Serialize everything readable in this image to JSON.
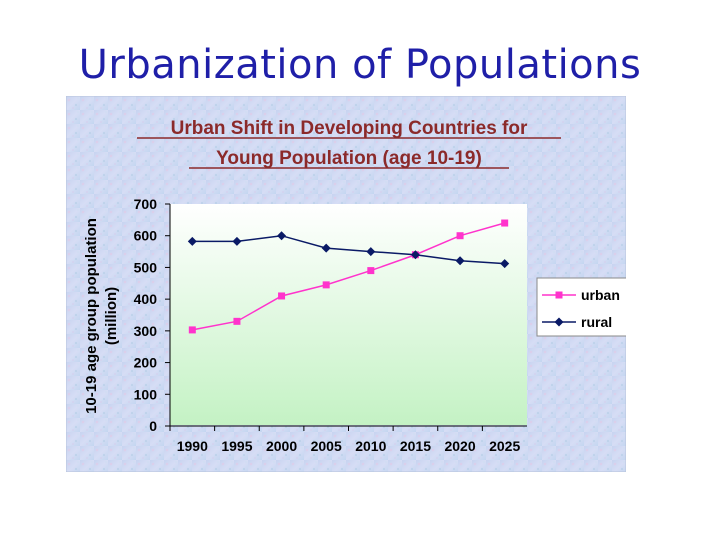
{
  "slide": {
    "title": "Urbanization of Populations"
  },
  "colors": {
    "title": "#1f1fa8",
    "chart_title": "#8b2a2a",
    "urban": "#ff33cc",
    "rural": "#0a1a66",
    "panel_bg": "#c9d8f2",
    "plot_bg_top": "#ffffff",
    "plot_bg_bottom": "#c4f2c4"
  },
  "chart_data": {
    "type": "line",
    "title_lines": [
      "Urban Shift in Developing Countries for",
      "Young Population (age 10-19)"
    ],
    "ylabel_lines": [
      "10-19 age group population",
      "(million)"
    ],
    "xlabel": "",
    "x": [
      "1990",
      "1995",
      "2000",
      "2005",
      "2010",
      "2015",
      "2020",
      "2025"
    ],
    "ylim": [
      0,
      700
    ],
    "yticks": [
      0,
      100,
      200,
      300,
      400,
      500,
      600,
      700
    ],
    "grid": false,
    "legend_position": "right",
    "series": [
      {
        "name": "urban",
        "color": "#ff33cc",
        "marker": "square",
        "values": [
          303,
          330,
          410,
          445,
          490,
          540,
          600,
          640
        ]
      },
      {
        "name": "rural",
        "color": "#0a1a66",
        "marker": "diamond",
        "values": [
          582,
          582,
          600,
          561,
          550,
          540,
          521,
          512
        ]
      }
    ]
  }
}
